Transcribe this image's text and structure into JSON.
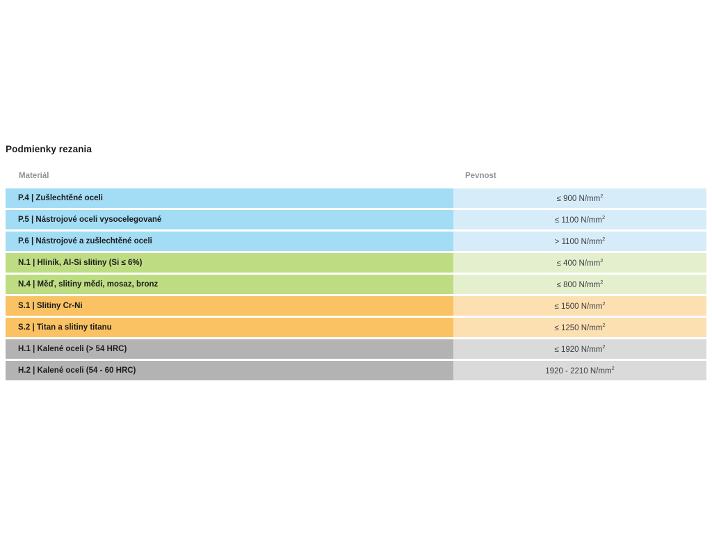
{
  "section": {
    "title": "Podmienky rezania"
  },
  "table": {
    "columns": [
      {
        "label": "Materiál"
      },
      {
        "label": "Pevnost"
      }
    ],
    "rows": [
      {
        "group": "p",
        "material": "P.4 | Zušlechtěné oceli",
        "value": "≤ 900 N/mm",
        "exp": "2"
      },
      {
        "group": "p",
        "material": "P.5 | Nástrojové oceli vysocelegované",
        "value": "≤ 1100 N/mm",
        "exp": "2"
      },
      {
        "group": "p",
        "material": "P.6 | Nástrojové a zušlechtěné oceli",
        "value": "> 1100 N/mm",
        "exp": "2"
      },
      {
        "group": "n",
        "material": "N.1 | Hliník, Al-Si slitiny (Si ≤ 6%)",
        "value": "≤ 400 N/mm",
        "exp": "2"
      },
      {
        "group": "n",
        "material": "N.4 | Měď, slitiny mědi, mosaz, bronz",
        "value": "≤ 800 N/mm",
        "exp": "2"
      },
      {
        "group": "s",
        "material": "S.1 | Slitiny Cr-Ni",
        "value": "≤ 1500 N/mm",
        "exp": "2"
      },
      {
        "group": "s",
        "material": "S.2 | Titan a slitiny titanu",
        "value": "≤ 1250 N/mm",
        "exp": "2"
      },
      {
        "group": "h",
        "material": "H.1 | Kalené oceli (> 54 HRC)",
        "value": "≤ 1920 N/mm",
        "exp": "2"
      },
      {
        "group": "h",
        "material": "H.2 | Kalené oceli (54 - 60 HRC)",
        "value": "1920 - 2210 N/mm",
        "exp": "2"
      }
    ]
  },
  "chart_data": {
    "type": "table",
    "title": "Podmienky rezania",
    "columns": [
      "Materiál",
      "Pevnost"
    ],
    "rows": [
      [
        "P.4 | Zušlechtěné oceli",
        "≤ 900 N/mm²"
      ],
      [
        "P.5 | Nástrojové oceli vysocelegované",
        "≤ 1100 N/mm²"
      ],
      [
        "P.6 | Nástrojové a zušlechtěné oceli",
        "> 1100 N/mm²"
      ],
      [
        "N.1 | Hliník, Al-Si slitiny (Si ≤ 6%)",
        "≤ 400 N/mm²"
      ],
      [
        "N.4 | Měď, slitiny mědi, mosaz, bronz",
        "≤ 800 N/mm²"
      ],
      [
        "S.1 | Slitiny Cr-Ni",
        "≤ 1500 N/mm²"
      ],
      [
        "S.2 | Titan a slitiny titanu",
        "≤ 1250 N/mm²"
      ],
      [
        "H.1 | Kalené oceli (> 54 HRC)",
        "≤ 1920 N/mm²"
      ],
      [
        "H.2 | Kalené oceli (54 - 60 HRC)",
        "1920 - 2210 N/mm²"
      ]
    ],
    "row_groups": [
      "p",
      "p",
      "p",
      "n",
      "n",
      "s",
      "s",
      "h",
      "h"
    ],
    "legend_note": "row color groups: p=blue steels, n=green non-ferrous, s=orange alloys, h=gray hardened steels"
  },
  "colors": {
    "p_dark": "#a2dcf5",
    "p_light": "#d6ecf9",
    "n_dark": "#bedc82",
    "n_light": "#e4efce",
    "s_dark": "#fac263",
    "s_light": "#fde0b2",
    "h_dark": "#b3b3b3",
    "h_light": "#dadada",
    "title_color": "#1b1b1b",
    "header_color": "#8f9296",
    "value_color": "#3a3d40"
  }
}
